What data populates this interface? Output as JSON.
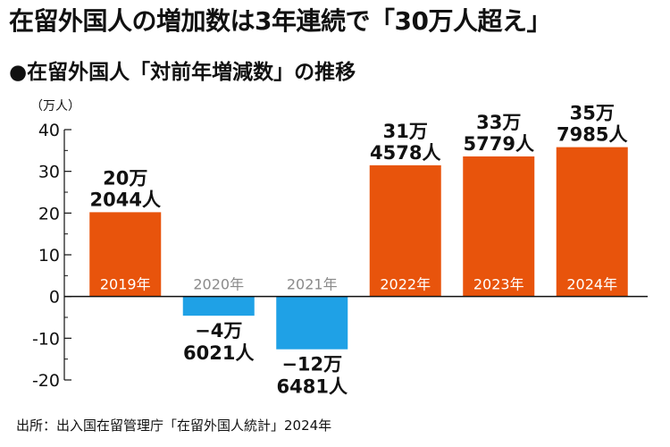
{
  "headline": "在留外国人の増加数は3年連続で「30万人超え」",
  "subtitle": "●在留外国人「対前年増減数」の推移",
  "source": "出所：出入国在留管理庁「在留外国人統計」2024年",
  "colors": {
    "positive": "#e8540c",
    "negative": "#1fa1e6",
    "label_on_bar": "#ffffff",
    "label_off_bar": "#8a8a8a",
    "axis": "#111111"
  },
  "chart_data": {
    "type": "bar",
    "title": "在留外国人「対前年増減数」の推移",
    "ylabel": "（万人）",
    "xlabel": "",
    "ylim": [
      -20,
      40
    ],
    "yticks": [
      40,
      30,
      20,
      10,
      0,
      -10,
      -20
    ],
    "ytick_labels": [
      "40",
      "30",
      "20",
      "10",
      "0",
      "-10",
      "-20"
    ],
    "grid": false,
    "categories": [
      "2019年",
      "2020年",
      "2021年",
      "2022年",
      "2023年",
      "2024年"
    ],
    "values": [
      20.2044,
      -4.6021,
      -12.6481,
      31.4578,
      33.5779,
      35.7985
    ],
    "labels": [
      [
        "20万",
        "2044人"
      ],
      [
        "−4万",
        "6021人"
      ],
      [
        "−12万",
        "6481人"
      ],
      [
        "31万",
        "4578人"
      ],
      [
        "33万",
        "5779人"
      ],
      [
        "35万",
        "7985人"
      ]
    ]
  }
}
